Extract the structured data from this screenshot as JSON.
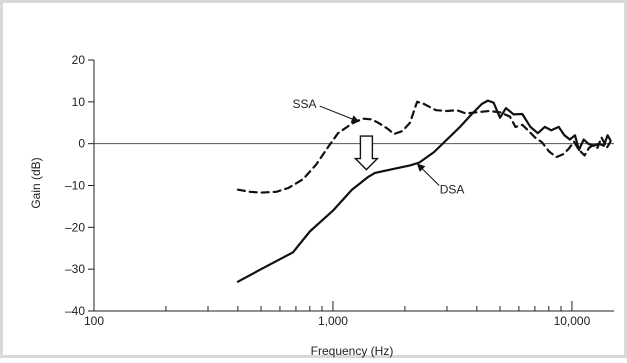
{
  "chart_data": {
    "type": "line",
    "title": "",
    "xlabel": "Frequency (Hz)",
    "ylabel": "Gain (dB)",
    "x_scale": "log",
    "xlim": [
      100,
      15000
    ],
    "ylim": [
      -40,
      20
    ],
    "x_ticks": [
      {
        "value": 100,
        "label": "100"
      },
      {
        "value": 1000,
        "label": "1,000"
      },
      {
        "value": 10000,
        "label": "10,000"
      }
    ],
    "y_ticks": [
      {
        "value": 20,
        "label": "20"
      },
      {
        "value": 10,
        "label": "10"
      },
      {
        "value": 0,
        "label": "0"
      },
      {
        "value": -10,
        "label": "–10"
      },
      {
        "value": -20,
        "label": "–20"
      },
      {
        "value": -30,
        "label": "–30"
      },
      {
        "value": -40,
        "label": "–40"
      }
    ],
    "reference_line_y": 0,
    "grid": false,
    "legend": "none",
    "series": [
      {
        "name": "SSA",
        "style": "dashed",
        "color": "#111111",
        "points": [
          [
            400,
            -11
          ],
          [
            450,
            -11.5
          ],
          [
            500,
            -11.7
          ],
          [
            580,
            -11.5
          ],
          [
            650,
            -10.6
          ],
          [
            750,
            -8.5
          ],
          [
            850,
            -5
          ],
          [
            950,
            -1
          ],
          [
            1050,
            2.5
          ],
          [
            1200,
            4.8
          ],
          [
            1330,
            6
          ],
          [
            1450,
            5.8
          ],
          [
            1550,
            5
          ],
          [
            1700,
            3.5
          ],
          [
            1800,
            2.3
          ],
          [
            1950,
            3
          ],
          [
            2100,
            5
          ],
          [
            2250,
            10
          ],
          [
            2400,
            9.5
          ],
          [
            2700,
            8
          ],
          [
            3000,
            7.8
          ],
          [
            3300,
            8
          ],
          [
            3600,
            7.2
          ],
          [
            4000,
            7.5
          ],
          [
            4500,
            7.8
          ],
          [
            5000,
            7.5
          ],
          [
            5500,
            6.5
          ],
          [
            5800,
            4
          ],
          [
            6200,
            4.5
          ],
          [
            6600,
            3
          ],
          [
            7000,
            1.5
          ],
          [
            7500,
            0.3
          ],
          [
            8000,
            -1.8
          ],
          [
            8600,
            -3.2
          ],
          [
            9200,
            -2.5
          ],
          [
            9700,
            -1.2
          ],
          [
            10200,
            0.5
          ],
          [
            10700,
            -1.5
          ],
          [
            11300,
            -2.8
          ],
          [
            11800,
            -1
          ],
          [
            12300,
            -0.3
          ],
          [
            12800,
            -1
          ],
          [
            13300,
            1.5
          ],
          [
            14000,
            -1
          ],
          [
            14500,
            0.5
          ]
        ]
      },
      {
        "name": "DSA",
        "style": "solid",
        "color": "#111111",
        "points": [
          [
            400,
            -33
          ],
          [
            500,
            -30
          ],
          [
            680,
            -26
          ],
          [
            800,
            -21
          ],
          [
            1000,
            -16
          ],
          [
            1200,
            -11
          ],
          [
            1400,
            -8
          ],
          [
            1500,
            -7
          ],
          [
            1800,
            -6
          ],
          [
            2100,
            -5.2
          ],
          [
            2300,
            -4.5
          ],
          [
            2650,
            -2
          ],
          [
            3000,
            1
          ],
          [
            3400,
            4
          ],
          [
            3800,
            7
          ],
          [
            4200,
            9.5
          ],
          [
            4450,
            10.3
          ],
          [
            4700,
            9.8
          ],
          [
            5000,
            6.2
          ],
          [
            5300,
            8.5
          ],
          [
            5700,
            7
          ],
          [
            6200,
            7.1
          ],
          [
            6700,
            4
          ],
          [
            7200,
            2.5
          ],
          [
            7700,
            4
          ],
          [
            8200,
            3.2
          ],
          [
            8800,
            4
          ],
          [
            9300,
            2
          ],
          [
            9800,
            1
          ],
          [
            10300,
            2
          ],
          [
            10700,
            -1.5
          ],
          [
            11200,
            1
          ],
          [
            11700,
            0
          ],
          [
            12300,
            -0.5
          ],
          [
            13000,
            0
          ],
          [
            13600,
            -0.5
          ],
          [
            14100,
            2
          ],
          [
            14500,
            0.8
          ]
        ]
      }
    ],
    "annotations": [
      {
        "label": "SSA",
        "target": [
          1280,
          5.3
        ],
        "text_at": [
          760,
          9.5
        ]
      },
      {
        "label": "DSA",
        "target": [
          2260,
          -4.9
        ],
        "text_at": [
          3150,
          -11
        ]
      }
    ],
    "arrow_marker": {
      "x": 1380,
      "y_from": 1.8,
      "y_to": -6.2
    }
  }
}
